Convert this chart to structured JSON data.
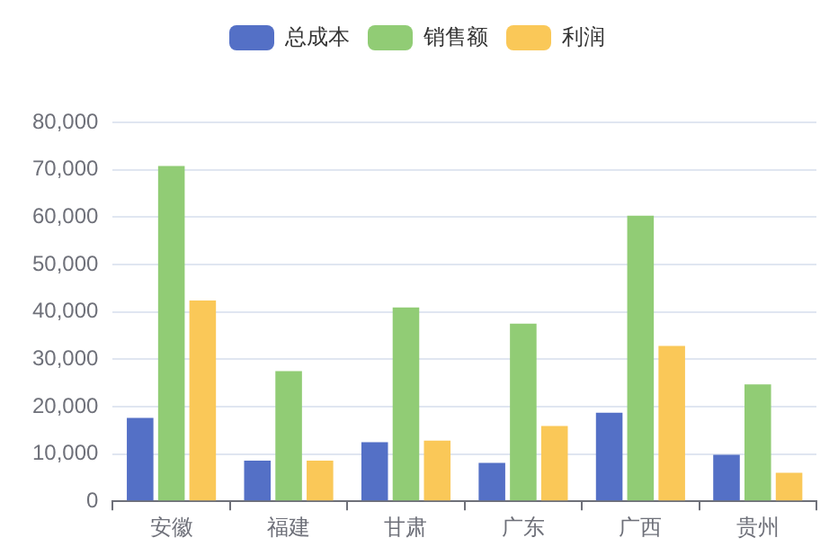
{
  "chart_data": {
    "type": "bar",
    "categories": [
      "安徽",
      "福建",
      "甘肃",
      "广东",
      "广西",
      "贵州"
    ],
    "series": [
      {
        "name": "总成本",
        "color": "#5470c6",
        "values": [
          17600,
          8600,
          12500,
          8100,
          18700,
          9800
        ]
      },
      {
        "name": "销售额",
        "color": "#91cc75",
        "values": [
          70800,
          27500,
          40900,
          37500,
          60300,
          24700
        ]
      },
      {
        "name": "利润",
        "color": "#fac858",
        "values": [
          42400,
          8600,
          12800,
          15900,
          32800,
          6000
        ]
      }
    ],
    "ylim": [
      0,
      80000
    ],
    "yticks": [
      {
        "value": 0,
        "label": "0"
      },
      {
        "value": 10000,
        "label": "10,000"
      },
      {
        "value": 20000,
        "label": "20,000"
      },
      {
        "value": 30000,
        "label": "30,000"
      },
      {
        "value": 40000,
        "label": "40,000"
      },
      {
        "value": 50000,
        "label": "50,000"
      },
      {
        "value": 60000,
        "label": "60,000"
      },
      {
        "value": 70000,
        "label": "70,000"
      },
      {
        "value": 80000,
        "label": "80,000"
      }
    ],
    "grid": "y",
    "legend": "top"
  }
}
